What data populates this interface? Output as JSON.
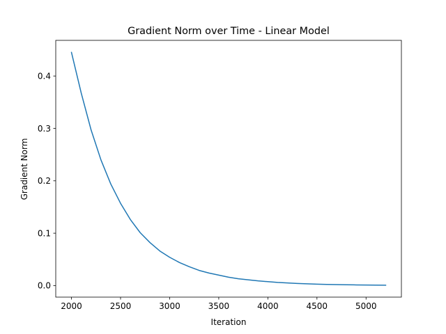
{
  "chart_data": {
    "type": "line",
    "title": "Gradient Norm over Time - Linear Model",
    "xlabel": "Iteration",
    "ylabel": "Gradient Norm",
    "xlim": [
      1840,
      5360
    ],
    "ylim": [
      -0.022,
      0.468
    ],
    "xticks": [
      2000,
      2500,
      3000,
      3500,
      4000,
      4500,
      5000
    ],
    "yticks": [
      0.0,
      0.1,
      0.2,
      0.3,
      0.4
    ],
    "xtick_labels": [
      "2000",
      "2500",
      "3000",
      "3500",
      "4000",
      "4500",
      "5000"
    ],
    "ytick_labels": [
      "0.0",
      "0.1",
      "0.2",
      "0.3",
      "0.4"
    ],
    "grid": false,
    "legend": "none",
    "series": [
      {
        "color": "#1f77b4",
        "x": [
          2000,
          2100,
          2200,
          2300,
          2400,
          2500,
          2600,
          2700,
          2800,
          2900,
          3000,
          3100,
          3200,
          3300,
          3400,
          3500,
          3600,
          3700,
          3800,
          3900,
          4000,
          4100,
          4200,
          4300,
          4400,
          4500,
          4600,
          4700,
          4800,
          4900,
          5000,
          5100,
          5200
        ],
        "y": [
          0.445,
          0.367,
          0.297,
          0.24,
          0.194,
          0.157,
          0.126,
          0.101,
          0.082,
          0.066,
          0.054,
          0.044,
          0.036,
          0.029,
          0.024,
          0.02,
          0.016,
          0.013,
          0.011,
          0.009,
          0.0075,
          0.006,
          0.005,
          0.004,
          0.0034,
          0.0028,
          0.0023,
          0.0019,
          0.0016,
          0.0013,
          0.0011,
          0.0009,
          0.0008
        ]
      }
    ]
  }
}
